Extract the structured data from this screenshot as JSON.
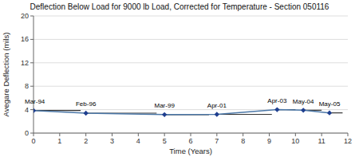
{
  "chart_data": {
    "type": "line",
    "title": "Deflection Below Load for 9000 lb Load, Corrected for Temperature - Section 050116",
    "x_label": "Time (Years)",
    "y_label": "Avegare Deflection (mils)",
    "x": [
      0.0,
      2.0,
      5.0,
      7.0,
      9.3,
      10.3,
      11.3
    ],
    "values": [
      3.85,
      3.4,
      3.15,
      3.2,
      4.0,
      3.9,
      3.45
    ],
    "marker": "diamond",
    "range_bars": [
      {
        "x0": 0.0,
        "x1": 1.8,
        "y": 3.85
      },
      {
        "x0": 2.0,
        "x1": 4.7,
        "y": 3.4
      },
      {
        "x0": 5.0,
        "x1": 6.7,
        "y": 3.15
      },
      {
        "x0": 7.0,
        "x1": 9.1,
        "y": 3.2
      },
      {
        "x0": 9.3,
        "x1": 10.0,
        "y": 4.0
      },
      {
        "x0": 10.3,
        "x1": 11.0,
        "y": 3.9
      },
      {
        "x0": 11.3,
        "x1": 11.8,
        "y": 3.45
      }
    ],
    "annotations": [
      {
        "x": 0.05,
        "y": 5.05,
        "label": "Mar-94"
      },
      {
        "x": 2.0,
        "y": 4.6,
        "label": "Feb-96"
      },
      {
        "x": 5.0,
        "y": 4.35,
        "label": "Mar-99"
      },
      {
        "x": 7.0,
        "y": 4.4,
        "label": "Apr-01"
      },
      {
        "x": 9.3,
        "y": 5.2,
        "label": "Apr-03"
      },
      {
        "x": 10.3,
        "y": 5.1,
        "label": "May-04"
      },
      {
        "x": 11.3,
        "y": 4.65,
        "label": "May-05"
      }
    ],
    "xlim": [
      0,
      12
    ],
    "ylim": [
      0,
      20
    ],
    "xticks": [
      0,
      1,
      2,
      3,
      4,
      5,
      6,
      7,
      8,
      9,
      10,
      11,
      12
    ],
    "yticks": [
      0,
      4,
      8,
      12,
      16,
      20
    ],
    "grid": "y"
  }
}
